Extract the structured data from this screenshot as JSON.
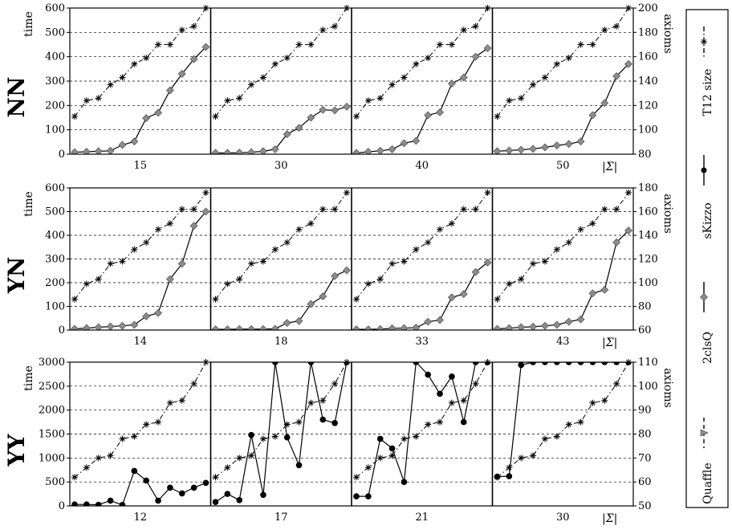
{
  "chart_data": {
    "type": "line",
    "row_labels": [
      "NN",
      "YN",
      "YY"
    ],
    "left_axis_label": "time",
    "right_axis_label": "axioms",
    "sigma_label": "|Σ|",
    "legend": {
      "entries": [
        {
          "label": "Quaffle",
          "marker": "triangle",
          "dash": "dashed"
        },
        {
          "label": "2clsQ",
          "marker": "diamond",
          "dash": "solid"
        },
        {
          "label": "sKizzo",
          "marker": "circle",
          "dash": "solid"
        },
        {
          "label": "T12 size",
          "marker": "star",
          "dash": "dashdot"
        }
      ]
    },
    "rows": [
      {
        "label": "NN",
        "time_ylim": [
          0,
          600
        ],
        "time_ticks": [
          "0",
          "100",
          "200",
          "300",
          "400",
          "500",
          "600"
        ],
        "axioms_ylim": [
          80,
          200
        ],
        "axioms_ticks": [
          "80",
          "100",
          "120",
          "140",
          "160",
          "180",
          "200"
        ],
        "panels": [
          {
            "sigma": "15",
            "solver": "2clsQ",
            "solver_values": [
              8,
              10,
              12,
              14,
              38,
              52,
              148,
              170,
              262,
              330,
              390,
              440
            ],
            "axioms_values": [
              111,
              124,
              126,
              137,
              143,
              154,
              159,
              170,
              170,
              182,
              185,
              200
            ]
          },
          {
            "sigma": "30",
            "solver": "2clsQ",
            "solver_values": [
              5,
              5,
              6,
              8,
              12,
              20,
              82,
              108,
              150,
              182,
              180,
              195
            ],
            "axioms_values": [
              111,
              124,
              126,
              137,
              143,
              154,
              159,
              170,
              170,
              182,
              185,
              200
            ]
          },
          {
            "sigma": "40",
            "solver": "2clsQ",
            "solver_values": [
              5,
              10,
              14,
              20,
              45,
              55,
              160,
              172,
              290,
              315,
              400,
              435
            ],
            "axioms_values": [
              111,
              124,
              126,
              137,
              143,
              154,
              159,
              170,
              170,
              182,
              185,
              200
            ]
          },
          {
            "sigma": "50",
            "solver": "2clsQ",
            "solver_values": [
              12,
              15,
              18,
              22,
              28,
              36,
              42,
              52,
              160,
              210,
              320,
              370
            ],
            "axioms_values": [
              111,
              124,
              126,
              137,
              143,
              154,
              159,
              170,
              170,
              182,
              185,
              200
            ]
          }
        ]
      },
      {
        "label": "YN",
        "time_ylim": [
          0,
          600
        ],
        "time_ticks": [
          "0",
          "100",
          "200",
          "300",
          "400",
          "500",
          "600"
        ],
        "axioms_ylim": [
          60,
          180
        ],
        "axioms_ticks": [
          "60",
          "80",
          "100",
          "120",
          "140",
          "160",
          "180"
        ],
        "panels": [
          {
            "sigma": "14",
            "solver": "2clsQ",
            "solver_values": [
              5,
              8,
              12,
              15,
              18,
              22,
              58,
              72,
              215,
              280,
              440,
              500
            ],
            "axioms_values": [
              86,
              99,
              103,
              116,
              118,
              128,
              134,
              145,
              150,
              162,
              162,
              176
            ]
          },
          {
            "sigma": "18",
            "solver": "2clsQ",
            "solver_values": [
              3,
              3,
              4,
              4,
              4,
              5,
              30,
              38,
              110,
              142,
              228,
              252
            ],
            "axioms_values": [
              86,
              99,
              103,
              116,
              118,
              128,
              134,
              145,
              150,
              162,
              162,
              176
            ]
          },
          {
            "sigma": "33",
            "solver": "2clsQ",
            "solver_values": [
              3,
              3,
              4,
              7,
              8,
              10,
              35,
              42,
              138,
              152,
              245,
              285
            ],
            "axioms_values": [
              86,
              99,
              103,
              116,
              118,
              128,
              134,
              145,
              150,
              162,
              162,
              176
            ]
          },
          {
            "sigma": "43",
            "solver": "2clsQ",
            "solver_values": [
              5,
              8,
              12,
              14,
              18,
              22,
              35,
              45,
              155,
              170,
              370,
              420
            ],
            "axioms_values": [
              86,
              99,
              103,
              116,
              118,
              128,
              134,
              145,
              150,
              162,
              162,
              176
            ]
          }
        ]
      },
      {
        "label": "YY",
        "time_ylim": [
          0,
          3000
        ],
        "time_ticks": [
          "0",
          "500",
          "1000",
          "1500",
          "2000",
          "2500",
          "3000"
        ],
        "axioms_ylim": [
          50,
          110
        ],
        "axioms_ticks": [
          "50",
          "60",
          "70",
          "80",
          "90",
          "100",
          "110"
        ],
        "panels": [
          {
            "sigma": "12",
            "solver": "sKizzo",
            "solver_values": [
              30,
              30,
              25,
              110,
              20,
              730,
              530,
              110,
              380,
              260,
              380,
              480
            ],
            "axioms_values": [
              62,
              66,
              70,
              71,
              78,
              79,
              84,
              85,
              93,
              94,
              101,
              110
            ]
          },
          {
            "sigma": "17",
            "solver": "sKizzo",
            "solver_values": [
              80,
              250,
              120,
              1480,
              230,
              3000,
              1430,
              850,
              3000,
              1800,
              1730,
              3000
            ],
            "axioms_values": [
              62,
              66,
              70,
              71,
              78,
              79,
              84,
              85,
              93,
              94,
              101,
              110
            ]
          },
          {
            "sigma": "21",
            "solver": "sKizzo",
            "solver_values": [
              200,
              200,
              1400,
              1200,
              500,
              3000,
              2740,
              2340,
              2700,
              1750,
              3000,
              3000
            ],
            "axioms_values": [
              62,
              66,
              70,
              71,
              78,
              79,
              84,
              85,
              93,
              94,
              101,
              110
            ]
          },
          {
            "sigma": "30",
            "solver": "sKizzo",
            "solver_values": [
              610,
              620,
              2940,
              3000,
              3000,
              3000,
              3000,
              3000,
              3000,
              3000,
              3000,
              3000
            ],
            "axioms_values": [
              62,
              66,
              70,
              71,
              78,
              79,
              84,
              85,
              93,
              94,
              101,
              110
            ]
          }
        ]
      }
    ]
  }
}
